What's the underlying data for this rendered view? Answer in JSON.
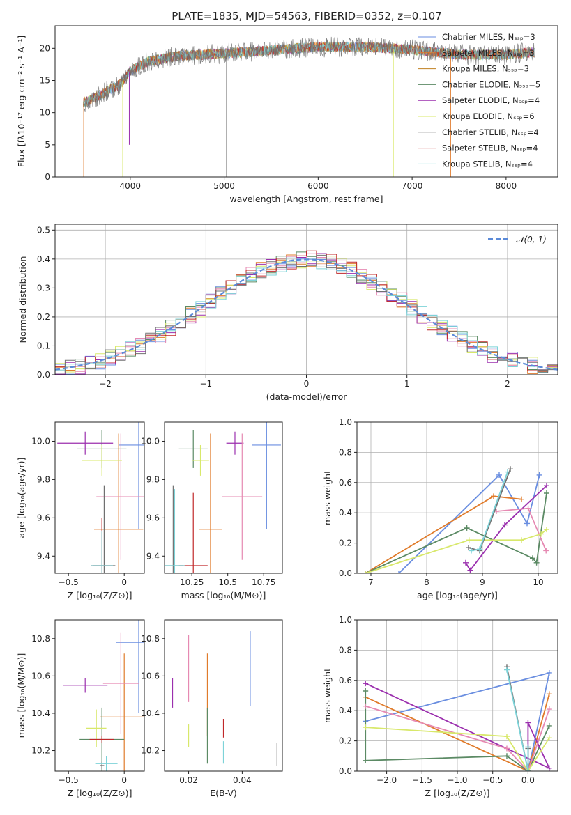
{
  "figure": {
    "title": "PLATE=1835, MJD=54563, FIBERID=0352, z=0.107"
  },
  "colors": {
    "blue": "#6a8ee0",
    "orange": "#e07b2b",
    "green": "#5b8a64",
    "purple": "#9b2fae",
    "pink": "#e689b2",
    "yellow": "#d8e86a",
    "gray": "#707070",
    "red": "#c0282a",
    "cyan": "#7dd3d8"
  },
  "chart_data": [
    {
      "id": "spectrum",
      "type": "line",
      "xlabel": "wavelength [Angstrom, rest frame]",
      "ylabel": "Flux [fλ10⁻¹⁷ erg cm⁻² s⁻¹ A⁻¹]",
      "xlim": [
        3200,
        8550
      ],
      "ylim": [
        0,
        23.5
      ],
      "xticks": [
        4000,
        5000,
        6000,
        7000,
        8000
      ],
      "yticks": [
        0,
        5,
        10,
        15,
        20
      ],
      "grid": false,
      "legend_position": "right",
      "legend": [
        {
          "name": "Chabrier MILES, Nₛₛₚ=3",
          "color": "#6a8ee0"
        },
        {
          "name": "Salpeter MILES, Nₛₛₚ=3",
          "color": "#e07b2b"
        },
        {
          "name": "Kroupa MILES, Nₛₛₚ=3",
          "color": "#c08020"
        },
        {
          "name": "Chabrier ELODIE, Nₛₛₚ=5",
          "color": "#5b8a64"
        },
        {
          "name": "Salpeter ELODIE, Nₛₛₚ=4",
          "color": "#9b2fae"
        },
        {
          "name": "Kroupa ELODIE, Nₛₛₚ=6",
          "color": "#d8e86a"
        },
        {
          "name": "Chabrier STELIB, Nₛₛₚ=4",
          "color": "#707070"
        },
        {
          "name": "Salpeter STELIB, Nₛₛₚ=4",
          "color": "#c0282a"
        },
        {
          "name": "Kroupa STELIB, Nₛₛₚ=4",
          "color": "#7dd3d8"
        }
      ],
      "continuum": [
        [
          3500,
          11.5
        ],
        [
          3650,
          12.5
        ],
        [
          3900,
          14.5
        ],
        [
          4000,
          16.5
        ],
        [
          4200,
          18.0
        ],
        [
          4500,
          18.8
        ],
        [
          5000,
          19.2
        ],
        [
          5500,
          19.7
        ],
        [
          6000,
          20.2
        ],
        [
          6500,
          20.2
        ],
        [
          7000,
          19.8
        ],
        [
          7300,
          19.3
        ],
        [
          7500,
          19.0
        ],
        [
          8000,
          19.0
        ],
        [
          8300,
          19.4
        ]
      ],
      "spikes": [
        {
          "x": 3505,
          "y": 0,
          "color": "#e07b2b"
        },
        {
          "x": 3920,
          "y": 0,
          "color": "#d8e86a"
        },
        {
          "x": 3990,
          "y": 5,
          "color": "#9b2fae"
        },
        {
          "x": 5025,
          "y": 0,
          "color": "#707070"
        },
        {
          "x": 6800,
          "y": 0,
          "color": "#d8e86a"
        },
        {
          "x": 7410,
          "y": 0,
          "color": "#e07b2b"
        }
      ]
    },
    {
      "id": "residual-histogram",
      "type": "histogram",
      "xlabel": "(data-model)/error",
      "ylabel": "Normed distribution",
      "xlim": [
        -2.5,
        2.5
      ],
      "ylim": [
        0,
        0.52
      ],
      "xticks": [
        -2,
        -1,
        0,
        1,
        2
      ],
      "yticks": [
        0.0,
        0.1,
        0.2,
        0.3,
        0.4,
        0.5
      ],
      "grid": true,
      "legend_position": "top-right",
      "reference_curve": {
        "name": "𝒩(0, 1)",
        "mean": 0,
        "sigma": 1,
        "color": "#5b8ad8"
      },
      "bin_width": 0.1,
      "series_colors": [
        "#6a8ee0",
        "#e07b2b",
        "#5b8a64",
        "#9b2fae",
        "#e689b2",
        "#d8e86a",
        "#c0282a",
        "#7dd3d8",
        "#707070"
      ]
    },
    {
      "id": "age-vs-z",
      "type": "errorbar",
      "xlabel": "Z [log₁₀(Z/Z⊙)]",
      "ylabel": "age [log₁₀(age/yr)]",
      "xlim": [
        -0.62,
        0.18
      ],
      "ylim": [
        9.31,
        10.1
      ],
      "xticks": [
        -0.5,
        0.0
      ],
      "yticks": [
        9.4,
        9.6,
        9.8,
        10.0
      ],
      "points": [
        {
          "x": 0.13,
          "xerr": 0.18,
          "y": 9.98,
          "yerr": 0.44,
          "color": "#6a8ee0"
        },
        {
          "x": -0.05,
          "xerr": 0.22,
          "y": 9.54,
          "yerr": 0.5,
          "color": "#e07b2b"
        },
        {
          "x": -0.2,
          "xerr": 0.22,
          "y": 9.96,
          "yerr": 0.1,
          "color": "#5b8a64"
        },
        {
          "x": -0.35,
          "xerr": 0.25,
          "y": 9.99,
          "yerr": 0.06,
          "color": "#9b2fae"
        },
        {
          "x": -0.03,
          "xerr": 0.22,
          "y": 9.71,
          "yerr": 0.33,
          "color": "#e689b2"
        },
        {
          "x": -0.2,
          "xerr": 0.18,
          "y": 9.9,
          "yerr": 0.08,
          "color": "#d8e86a"
        },
        {
          "x": -0.18,
          "xerr": 0.1,
          "y": 9.35,
          "yerr": 0.42,
          "color": "#707070"
        },
        {
          "x": -0.2,
          "xerr": 0.1,
          "y": 9.35,
          "yerr": 0.25,
          "color": "#c0282a"
        },
        {
          "x": -0.2,
          "xerr": 0.1,
          "y": 9.35,
          "yerr": 0.18,
          "color": "#7dd3d8"
        }
      ]
    },
    {
      "id": "age-vs-mass",
      "type": "errorbar",
      "xlabel": "mass [log₁₀(M/M⊙)]",
      "ylabel": "",
      "xlim": [
        10.06,
        10.88
      ],
      "ylim": [
        9.31,
        10.1
      ],
      "xticks": [
        10.25,
        10.5,
        10.75
      ],
      "yticks": [
        9.4,
        9.6,
        9.8,
        10.0
      ],
      "points": [
        {
          "x": 10.77,
          "xerr": 0.1,
          "y": 9.98,
          "yerr": 0.44,
          "color": "#6a8ee0"
        },
        {
          "x": 10.38,
          "xerr": 0.08,
          "y": 9.54,
          "yerr": 0.5,
          "color": "#e07b2b"
        },
        {
          "x": 10.26,
          "xerr": 0.1,
          "y": 9.96,
          "yerr": 0.1,
          "color": "#5b8a64"
        },
        {
          "x": 10.55,
          "xerr": 0.06,
          "y": 9.99,
          "yerr": 0.06,
          "color": "#9b2fae"
        },
        {
          "x": 10.6,
          "xerr": 0.14,
          "y": 9.71,
          "yerr": 0.33,
          "color": "#e689b2"
        },
        {
          "x": 10.31,
          "xerr": 0.06,
          "y": 9.9,
          "yerr": 0.08,
          "color": "#d8e86a"
        },
        {
          "x": 10.12,
          "xerr": 0.07,
          "y": 9.35,
          "yerr": 0.42,
          "color": "#707070"
        },
        {
          "x": 10.26,
          "xerr": 0.1,
          "y": 9.35,
          "yerr": 0.38,
          "color": "#c0282a"
        },
        {
          "x": 10.13,
          "xerr": 0.07,
          "y": 9.35,
          "yerr": 0.4,
          "color": "#7dd3d8"
        }
      ]
    },
    {
      "id": "weight-vs-age",
      "type": "line",
      "xlabel": "age [log₁₀(age/yr)]",
      "ylabel": "mass weight",
      "xlim": [
        6.75,
        10.35
      ],
      "ylim": [
        0.0,
        1.0
      ],
      "xticks": [
        7,
        8,
        9,
        10
      ],
      "yticks": [
        0.0,
        0.2,
        0.4,
        0.6,
        0.8,
        1.0
      ],
      "grid": true,
      "series": [
        {
          "color": "#6a8ee0",
          "points": [
            [
              7.5,
              0.0
            ],
            [
              9.3,
              0.65
            ],
            [
              9.8,
              0.33
            ],
            [
              10.02,
              0.65
            ]
          ]
        },
        {
          "color": "#e07b2b",
          "points": [
            [
              6.9,
              0.0
            ],
            [
              9.2,
              0.51
            ],
            [
              9.7,
              0.49
            ]
          ]
        },
        {
          "color": "#5b8a64",
          "points": [
            [
              6.9,
              0.0
            ],
            [
              8.72,
              0.3
            ],
            [
              9.9,
              0.1
            ],
            [
              9.97,
              0.07
            ],
            [
              10.15,
              0.53
            ]
          ]
        },
        {
          "color": "#9b2fae",
          "points": [
            [
              8.7,
              0.07
            ],
            [
              8.78,
              0.02
            ],
            [
              9.4,
              0.32
            ],
            [
              10.15,
              0.58
            ]
          ]
        },
        {
          "color": "#e689b2",
          "points": [
            [
              9.25,
              0.41
            ],
            [
              9.82,
              0.43
            ],
            [
              10.14,
              0.15
            ]
          ]
        },
        {
          "color": "#d8e86a",
          "points": [
            [
              6.9,
              0.0
            ],
            [
              8.76,
              0.22
            ],
            [
              9.7,
              0.22
            ],
            [
              10.05,
              0.26
            ],
            [
              10.15,
              0.29
            ]
          ]
        },
        {
          "color": "#707070",
          "points": [
            [
              8.75,
              0.17
            ],
            [
              8.95,
              0.15
            ],
            [
              9.5,
              0.69
            ]
          ]
        },
        {
          "color": "#7dd3d8",
          "points": [
            [
              8.8,
              0.15
            ],
            [
              8.95,
              0.16
            ],
            [
              9.45,
              0.67
            ]
          ]
        }
      ]
    },
    {
      "id": "mass-vs-z",
      "type": "errorbar",
      "xlabel": "Z [log₁₀(Z/Z⊙)]",
      "ylabel": "mass [log₁₀(M/M⊙)]",
      "xlim": [
        -0.62,
        0.18
      ],
      "ylim": [
        10.09,
        10.9
      ],
      "xticks": [
        -0.5,
        0.0
      ],
      "yticks": [
        10.2,
        10.4,
        10.6,
        10.8
      ],
      "points": [
        {
          "x": 0.13,
          "xerr": 0.2,
          "y": 10.78,
          "yerr": 0.38,
          "color": "#6a8ee0"
        },
        {
          "x": 0.0,
          "xerr": 0.22,
          "y": 10.38,
          "yerr": 0.34,
          "color": "#e07b2b"
        },
        {
          "x": -0.2,
          "xerr": 0.2,
          "y": 10.26,
          "yerr": 0.17,
          "color": "#5b8a64"
        },
        {
          "x": -0.35,
          "xerr": 0.2,
          "y": 10.55,
          "yerr": 0.04,
          "color": "#9b2fae"
        },
        {
          "x": -0.03,
          "xerr": 0.16,
          "y": 10.56,
          "yerr": 0.27,
          "color": "#e689b2"
        },
        {
          "x": -0.25,
          "xerr": 0.09,
          "y": 10.32,
          "yerr": 0.1,
          "color": "#d8e86a"
        },
        {
          "x": -0.2,
          "xerr": 0.02,
          "y": 10.12,
          "yerr": 0.02,
          "color": "#707070"
        },
        {
          "x": -0.2,
          "xerr": 0.11,
          "y": 10.26,
          "yerr": 0.02,
          "color": "#c0282a"
        },
        {
          "x": -0.16,
          "xerr": 0.1,
          "y": 10.13,
          "yerr": 0.04,
          "color": "#7dd3d8"
        }
      ]
    },
    {
      "id": "mass-vs-ebv",
      "type": "errorbar",
      "xlabel": "E(B-V)",
      "ylabel": "",
      "xlim": [
        0.011,
        0.055
      ],
      "ylim": [
        10.09,
        10.9
      ],
      "xticks": [
        0.02,
        0.04
      ],
      "yticks": [
        10.2,
        10.4,
        10.6,
        10.8
      ],
      "points": [
        {
          "x": 0.043,
          "xerr": 0,
          "y": 10.64,
          "yerr": 0.2,
          "color": "#6a8ee0"
        },
        {
          "x": 0.027,
          "xerr": 0,
          "y": 10.5,
          "yerr": 0.22,
          "color": "#e07b2b"
        },
        {
          "x": 0.027,
          "xerr": 0,
          "y": 10.28,
          "yerr": 0.15,
          "color": "#5b8a64"
        },
        {
          "x": 0.014,
          "xerr": 0,
          "y": 10.51,
          "yerr": 0.08,
          "color": "#9b2fae"
        },
        {
          "x": 0.02,
          "xerr": 0,
          "y": 10.64,
          "yerr": 0.18,
          "color": "#e689b2"
        },
        {
          "x": 0.02,
          "xerr": 0,
          "y": 10.28,
          "yerr": 0.06,
          "color": "#d8e86a"
        },
        {
          "x": 0.053,
          "xerr": 0,
          "y": 10.18,
          "yerr": 0.06,
          "color": "#707070"
        },
        {
          "x": 0.033,
          "xerr": 0,
          "y": 10.32,
          "yerr": 0.05,
          "color": "#c0282a"
        },
        {
          "x": 0.033,
          "xerr": 0,
          "y": 10.19,
          "yerr": 0.06,
          "color": "#7dd3d8"
        }
      ]
    },
    {
      "id": "weight-vs-z",
      "type": "line",
      "xlabel": "Z [log₁₀(Z/Z⊙)]",
      "ylabel": "mass weight",
      "xlim": [
        -2.42,
        0.42
      ],
      "ylim": [
        0.0,
        1.0
      ],
      "xticks": [
        -2.0,
        -1.5,
        -1.0,
        -0.5,
        0.0
      ],
      "yticks": [
        0.0,
        0.2,
        0.4,
        0.6,
        0.8,
        1.0
      ],
      "grid": true,
      "series": [
        {
          "color": "#6a8ee0",
          "points": [
            [
              -2.3,
              0.33
            ],
            [
              0.3,
              0.65
            ],
            [
              0.0,
              0.0
            ]
          ]
        },
        {
          "color": "#e07b2b",
          "points": [
            [
              -2.3,
              0.49
            ],
            [
              0.0,
              0.0
            ],
            [
              0.3,
              0.51
            ]
          ]
        },
        {
          "color": "#5b8a64",
          "points": [
            [
              -2.3,
              0.53
            ],
            [
              -2.3,
              0.07
            ],
            [
              -0.3,
              0.1
            ],
            [
              0.0,
              0.0
            ],
            [
              0.3,
              0.3
            ]
          ]
        },
        {
          "color": "#9b2fae",
          "points": [
            [
              -2.3,
              0.58
            ],
            [
              0.3,
              0.02
            ],
            [
              0.0,
              0.32
            ],
            [
              0.0,
              0.02
            ]
          ]
        },
        {
          "color": "#e689b2",
          "points": [
            [
              -2.3,
              0.43
            ],
            [
              -0.3,
              0.15
            ],
            [
              0.0,
              0.0
            ],
            [
              0.3,
              0.41
            ]
          ]
        },
        {
          "color": "#d8e86a",
          "points": [
            [
              -2.3,
              0.29
            ],
            [
              -0.3,
              0.23
            ],
            [
              0.0,
              0.0
            ],
            [
              0.3,
              0.22
            ]
          ]
        },
        {
          "color": "#707070",
          "points": [
            [
              -0.3,
              0.69
            ],
            [
              0.0,
              0.0
            ],
            [
              0.0,
              0.15
            ]
          ]
        },
        {
          "color": "#7dd3d8",
          "points": [
            [
              -0.3,
              0.67
            ],
            [
              0.0,
              0.0
            ],
            [
              0.0,
              0.16
            ]
          ]
        }
      ]
    }
  ]
}
